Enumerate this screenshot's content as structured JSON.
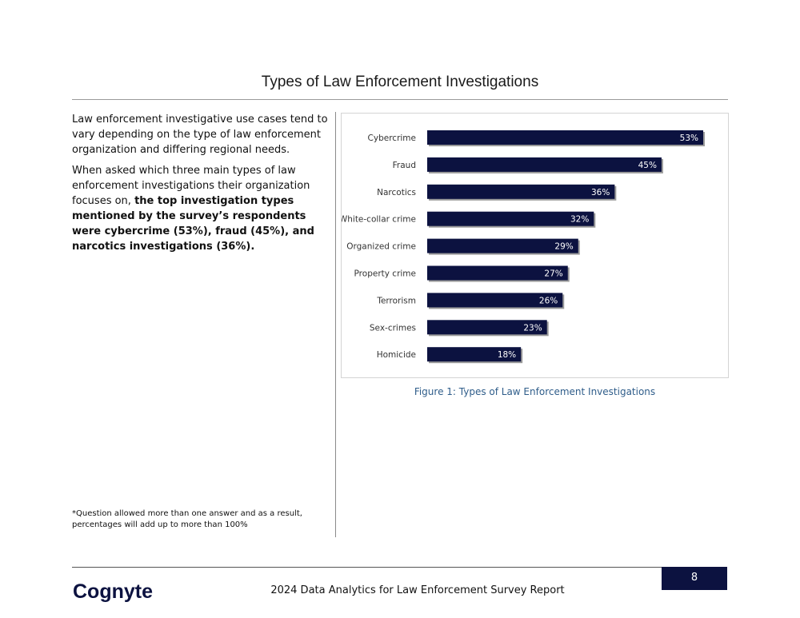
{
  "page": {
    "title": "Types of Law Enforcement Investigations",
    "paragraph1": "Law enforcement investigative use cases tend to vary depending on the type of law enforcement organization and differing regional needs.",
    "paragraph2_plain": "When asked which three main types of law enforcement investigations their organization focuses on, ",
    "paragraph2_bold": "the top investigation types mentioned by the survey’s respondents were cybercrime (53%), fraud (45%), and narcotics investigations (36%).",
    "footnote": "*Question allowed more than one answer and as a result, percentages will add up to more than 100%",
    "figure_caption": "Figure 1: Types of Law Enforcement Investigations",
    "footer_text": "2024 Data Analytics for Law Enforcement Survey Report",
    "page_number": "8",
    "logo_text": "Cognyte"
  },
  "colors": {
    "bar": "#0c1240",
    "caption": "#2f5d8a"
  },
  "chart_data": {
    "type": "bar",
    "orientation": "horizontal",
    "categories": [
      "Cybercrime",
      "Fraud",
      "Narcotics",
      "White-collar crime",
      "Organized crime",
      "Property crime",
      "Terrorism",
      "Sex-crimes",
      "Homicide"
    ],
    "values": [
      53,
      45,
      36,
      32,
      29,
      27,
      26,
      23,
      18
    ],
    "value_labels": [
      "53%",
      "45%",
      "36%",
      "32%",
      "29%",
      "27%",
      "26%",
      "23%",
      "18%"
    ],
    "xlim": [
      0,
      53
    ],
    "grid": false,
    "legend": "none"
  }
}
